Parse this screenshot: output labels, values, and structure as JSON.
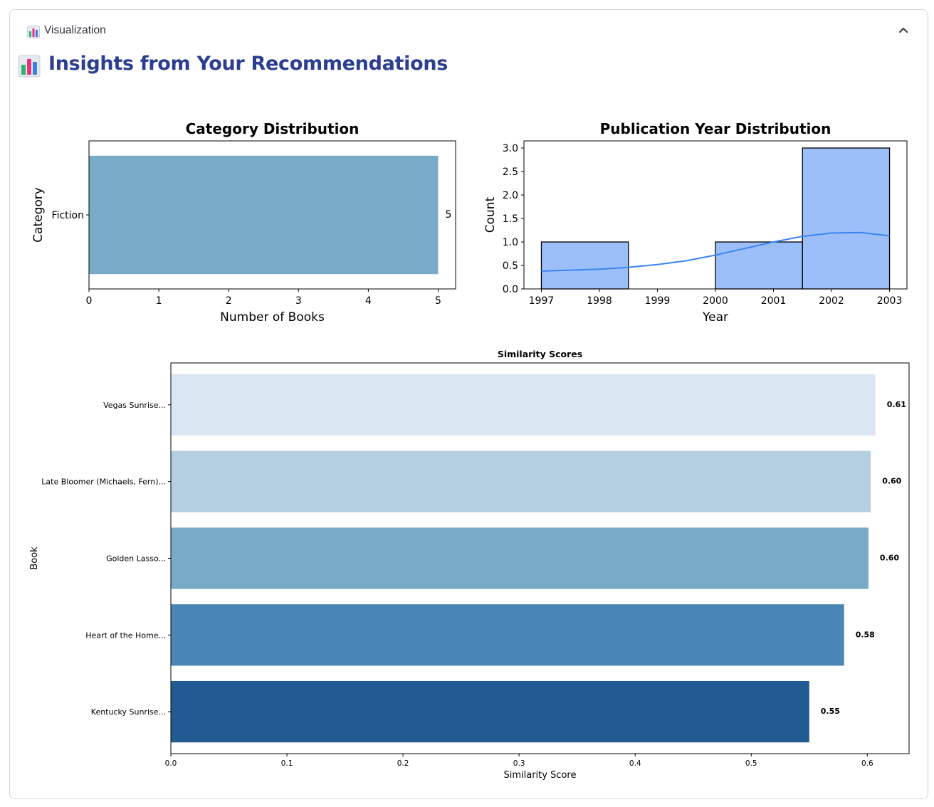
{
  "expander": {
    "label": "Visualization",
    "icon": "bar-chart-icon",
    "toggle_icon": "chevron-up-icon"
  },
  "heading": {
    "text": "Insights from Your Recommendations",
    "icon": "bar-chart-icon"
  },
  "chart_data": [
    {
      "type": "bar",
      "orientation": "horizontal",
      "title": "Category Distribution",
      "xlabel": "Number of Books",
      "ylabel": "Category",
      "categories": [
        "Fiction"
      ],
      "values": [
        5
      ],
      "data_labels": [
        "5"
      ],
      "xlim": [
        0,
        5.25
      ],
      "xticks": [
        "0",
        "1",
        "2",
        "3",
        "4",
        "5"
      ],
      "color": "#79abc9",
      "grid": false
    },
    {
      "type": "bar",
      "subtype": "histogram_with_kde",
      "title": "Publication Year Distribution",
      "xlabel": "Year",
      "ylabel": "Count",
      "bins": [
        {
          "start": 1997,
          "end": 1998.5,
          "count": 1
        },
        {
          "start": 1998.5,
          "end": 2000,
          "count": 0
        },
        {
          "start": 2000,
          "end": 2001.5,
          "count": 1
        },
        {
          "start": 2001.5,
          "end": 2003,
          "count": 3
        }
      ],
      "kde": {
        "x": [
          1997,
          1997.5,
          1998,
          1998.5,
          1999,
          1999.5,
          2000,
          2000.5,
          2001,
          2001.5,
          2002,
          2002.5,
          2003
        ],
        "y": [
          0.38,
          0.4,
          0.42,
          0.46,
          0.52,
          0.6,
          0.72,
          0.86,
          1.0,
          1.12,
          1.19,
          1.2,
          1.13
        ]
      },
      "xlim": [
        1996.7,
        2003.3
      ],
      "ylim": [
        0,
        3.0
      ],
      "xticks": [
        "1997",
        "1998",
        "1999",
        "2000",
        "2001",
        "2002",
        "2003"
      ],
      "yticks": [
        "0.0",
        "0.5",
        "1.0",
        "1.5",
        "2.0",
        "2.5",
        "3.0"
      ],
      "bar_color": "#9cbff9",
      "line_color": "#3a85f2",
      "grid": false
    },
    {
      "type": "bar",
      "orientation": "horizontal",
      "title": "Similarity Scores",
      "xlabel": "Similarity Score",
      "ylabel": "Book",
      "categories": [
        "Vegas Sunrise...",
        "Late Bloomer (Michaels, Fern)...",
        "Golden Lasso...",
        "Heart of the Home...",
        "Kentucky Sunrise..."
      ],
      "values": [
        0.607,
        0.603,
        0.601,
        0.58,
        0.55
      ],
      "data_labels": [
        "0.61",
        "0.60",
        "0.60",
        "0.58",
        "0.55"
      ],
      "colors": [
        "#dae7f3",
        "#b4cfe1",
        "#79abc9",
        "#4986b5",
        "#225b91"
      ],
      "xlim": [
        0,
        0.636
      ],
      "xticks": [
        "0.0",
        "0.1",
        "0.2",
        "0.3",
        "0.4",
        "0.5",
        "0.6"
      ],
      "grid": false
    }
  ]
}
